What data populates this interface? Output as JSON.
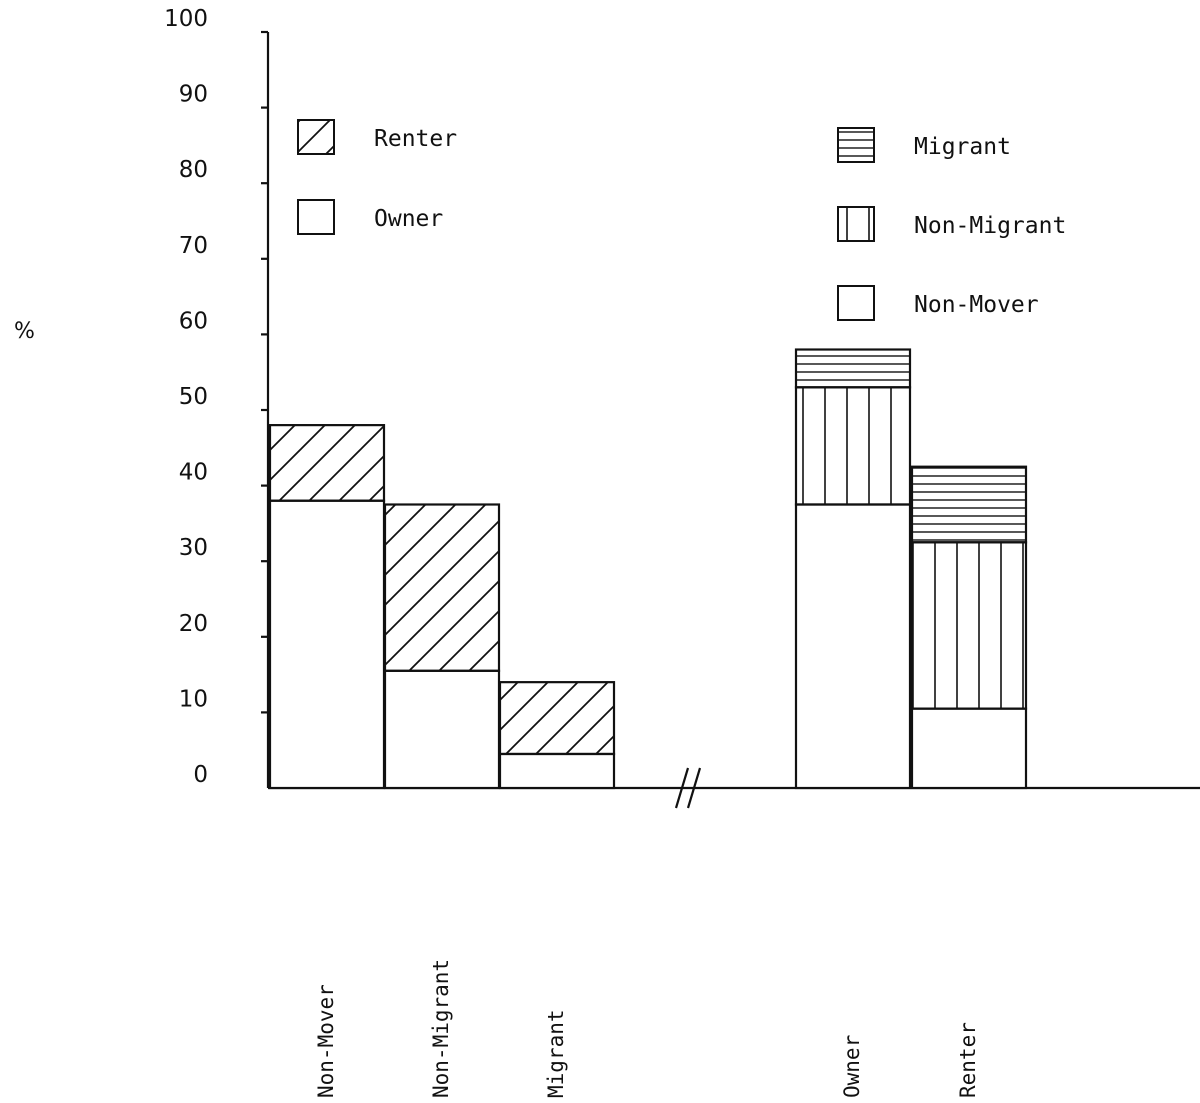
{
  "chart_data": [
    {
      "type": "bar",
      "stacked": true,
      "ylabel": "%",
      "ylim": [
        0,
        100
      ],
      "yticks": [
        0,
        10,
        20,
        30,
        40,
        50,
        60,
        70,
        80,
        90,
        100
      ],
      "categories": [
        "Non-Mover",
        "Non-Migrant",
        "Migrant"
      ],
      "series": [
        {
          "name": "Owner",
          "values": [
            38,
            15.5,
            4.5
          ],
          "pattern": "blank"
        },
        {
          "name": "Renter",
          "values": [
            10,
            22,
            9.5
          ],
          "pattern": "diagonal-hatch"
        }
      ],
      "legend": {
        "position": "top-left"
      }
    },
    {
      "type": "bar",
      "stacked": true,
      "categories": [
        "Owner",
        "Renter"
      ],
      "series": [
        {
          "name": "Non-Mover",
          "values": [
            37.5,
            10.5
          ],
          "pattern": "blank"
        },
        {
          "name": "Non-Migrant",
          "values": [
            15.5,
            22
          ],
          "pattern": "vertical-hatch"
        },
        {
          "name": "Migrant",
          "values": [
            5,
            10
          ],
          "pattern": "horizontal-hatch"
        }
      ],
      "legend": {
        "position": "top-right",
        "order": [
          "Migrant",
          "Non-Migrant",
          "Non-Mover"
        ]
      }
    }
  ],
  "colors": {
    "ink": "#111111",
    "background": "#ffffff"
  },
  "axis_break_symbol": "//"
}
